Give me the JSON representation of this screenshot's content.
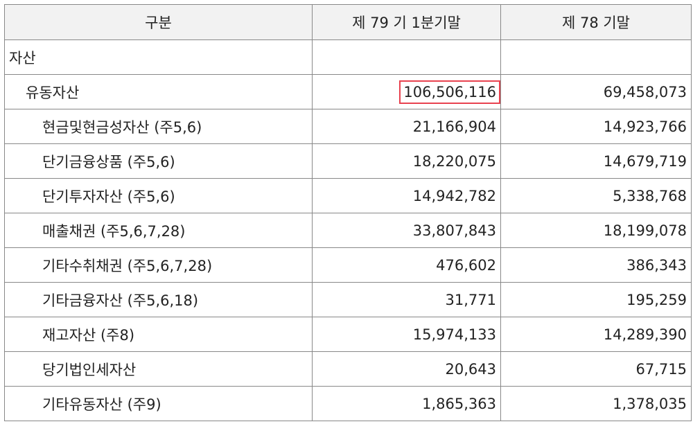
{
  "table": {
    "header": [
      "구분",
      "제 79 기 1분기말",
      "제 78 기말"
    ],
    "rows": [
      [
        "자산",
        "",
        ""
      ],
      [
        "유동자산",
        "106,506,116",
        "69,458,073"
      ],
      [
        "현금및현금성자산 (주5,6)",
        "21,166,904",
        "14,923,766"
      ],
      [
        "단기금융상품 (주5,6)",
        "18,220,075",
        "14,679,719"
      ],
      [
        "단기투자자산 (주5,6)",
        "14,942,782",
        "5,338,768"
      ],
      [
        "매출채권 (주5,6,7,28)",
        "33,807,843",
        "18,199,078"
      ],
      [
        "기타수취채권 (주5,6,7,28)",
        "476,602",
        "386,343"
      ],
      [
        "기타금융자산 (주5,6,18)",
        "31,771",
        "195,259"
      ],
      [
        "재고자산 (주8)",
        "15,974,133",
        "14,289,390"
      ],
      [
        "당기법인세자산",
        "20,643",
        "67,715"
      ],
      [
        "기타유동자산 (주9)",
        "1,865,363",
        "1,378,035"
      ]
    ]
  }
}
